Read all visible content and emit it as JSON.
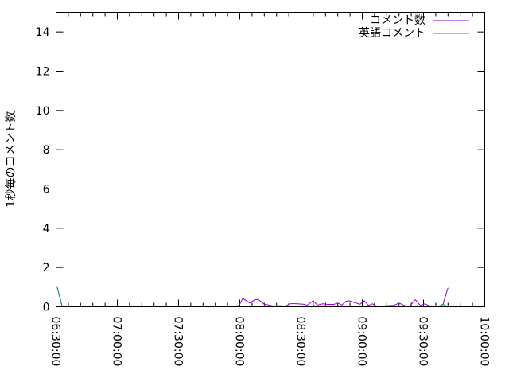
{
  "chart_data": {
    "type": "line",
    "title": "",
    "xlabel": "",
    "ylabel": "1秒毎のコメント数",
    "xlim": [
      "06:30:00",
      "10:00:00"
    ],
    "ylim": [
      0,
      15
    ],
    "x_ticks": [
      "06:30:00",
      "07:00:00",
      "07:30:00",
      "08:00:00",
      "08:30:00",
      "09:00:00",
      "09:30:00",
      "10:00:00"
    ],
    "y_ticks": [
      "0",
      "2",
      "4",
      "6",
      "8",
      "10",
      "12",
      "14"
    ],
    "grid": false,
    "legend_placement": "top-right",
    "series": [
      {
        "name": "コメント数",
        "color": "#9400d3",
        "points": [
          [
            "06:30:30",
            1.0
          ],
          [
            "06:33:00",
            0
          ],
          [
            "07:57:00",
            0
          ],
          [
            "07:59:36",
            0.07
          ],
          [
            "08:01:30",
            0.43
          ],
          [
            "08:04:48",
            0.2
          ],
          [
            "08:07:24",
            0.36
          ],
          [
            "08:09:00",
            0.38
          ],
          [
            "08:12:00",
            0.13
          ],
          [
            "08:14:00",
            0.09
          ],
          [
            "08:16:00",
            0.04
          ],
          [
            "08:20:00",
            0.05
          ],
          [
            "08:22:00",
            0.03
          ],
          [
            "08:25:00",
            0.16
          ],
          [
            "08:27:30",
            0.16
          ],
          [
            "08:31:00",
            0.13
          ],
          [
            "08:33:00",
            0.08
          ],
          [
            "08:36:00",
            0.31
          ],
          [
            "08:38:00",
            0.08
          ],
          [
            "08:40:30",
            0.15
          ],
          [
            "08:43:00",
            0.12
          ],
          [
            "08:46:00",
            0.12
          ],
          [
            "08:48:00",
            0.19
          ],
          [
            "08:50:00",
            0.09
          ],
          [
            "08:52:00",
            0.28
          ],
          [
            "08:53:30",
            0.31
          ],
          [
            "08:55:30",
            0.24
          ],
          [
            "08:59:00",
            0.13
          ],
          [
            "09:01:00",
            0.31
          ],
          [
            "09:03:00",
            0.07
          ],
          [
            "09:05:00",
            0.15
          ],
          [
            "09:07:00",
            0.03
          ],
          [
            "09:10:00",
            0.04
          ],
          [
            "09:15:30",
            0.07
          ],
          [
            "09:18:00",
            0.19
          ],
          [
            "09:21:00",
            0.04
          ],
          [
            "09:23:00",
            0.01
          ],
          [
            "09:26:00",
            0.36
          ],
          [
            "09:28:30",
            0.07
          ],
          [
            "09:30:30",
            0.15
          ],
          [
            "09:33:00",
            0.05
          ],
          [
            "09:35:30",
            0.03
          ],
          [
            "09:38:00",
            0.04
          ],
          [
            "09:39:30",
            0.11
          ],
          [
            "09:42:00",
            0.97
          ]
        ]
      },
      {
        "name": "英語コメント",
        "color": "#009e73",
        "points": [
          [
            "06:30:30",
            1.0
          ],
          [
            "06:33:00",
            0
          ],
          [
            "08:18:00",
            0
          ],
          [
            "08:20:00",
            0.05
          ],
          [
            "08:22:00",
            0
          ],
          [
            "08:44:00",
            0
          ],
          [
            "08:46:00",
            0.05
          ],
          [
            "08:48:00",
            0
          ],
          [
            "09:24:00",
            0
          ],
          [
            "09:26:00",
            0.04
          ],
          [
            "09:28:00",
            0
          ],
          [
            "09:37:00",
            0
          ],
          [
            "09:39:30",
            0.13
          ],
          [
            "09:42:00",
            0
          ]
        ]
      }
    ]
  }
}
